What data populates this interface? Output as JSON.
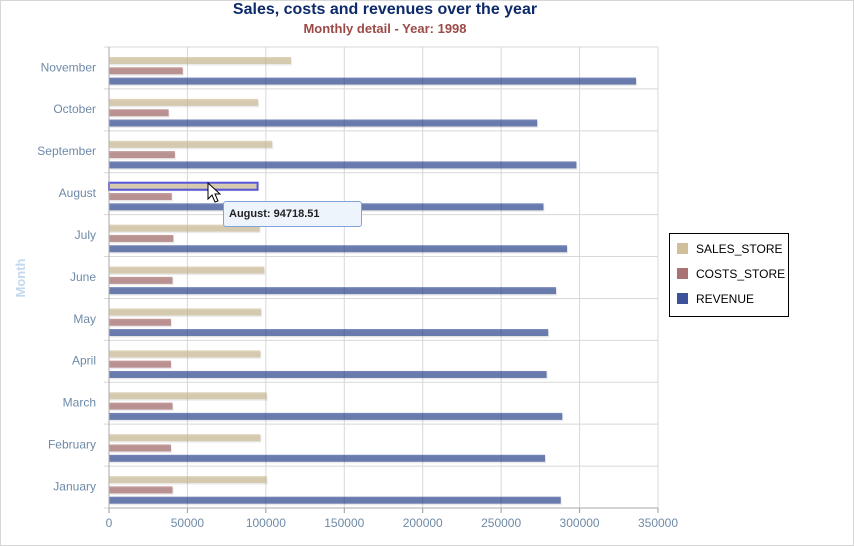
{
  "chart_data": {
    "type": "bar",
    "orientation": "horizontal",
    "title": "Sales, costs and revenues over the year",
    "subtitle": "Monthly detail - Year: 1998",
    "ylabel": "Month",
    "xlim": [
      0,
      350000
    ],
    "x_ticks": [
      "0",
      "50000",
      "100000",
      "150000",
      "200000",
      "250000",
      "300000",
      "350000"
    ],
    "categories": [
      "November",
      "October",
      "September",
      "August",
      "July",
      "June",
      "May",
      "April",
      "March",
      "February",
      "January"
    ],
    "series": [
      {
        "name": "SALES_STORE",
        "color": "#c8b48a",
        "values": [
          116000,
          95000,
          104000,
          94718.51,
          96000,
          99000,
          97000,
          96500,
          100500,
          96500,
          100500
        ]
      },
      {
        "name": "COSTS_STORE",
        "color": "#9b5a5a",
        "values": [
          47000,
          38000,
          42000,
          40000,
          41000,
          40500,
          39500,
          39500,
          40500,
          39500,
          40500
        ]
      },
      {
        "name": "REVENUE",
        "color": "#1a3587",
        "values": [
          336000,
          273000,
          298000,
          277000,
          292000,
          285000,
          280000,
          279000,
          289000,
          278000,
          288000
        ]
      }
    ],
    "grid": true,
    "legend_position": "right",
    "tooltip": "August: 94718.51",
    "highlighted_series": "SALES_STORE",
    "highlighted_category": "August"
  }
}
